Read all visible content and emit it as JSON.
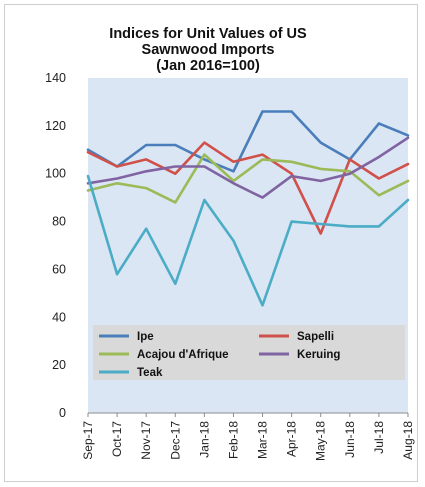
{
  "chart_data": {
    "type": "line",
    "title_lines": [
      "Indices for Unit Values of US",
      "Sawnwood Imports",
      "(Jan 2016=100)"
    ],
    "xlabel": "",
    "ylabel": "",
    "ylim": [
      0,
      140
    ],
    "yticks": [
      0,
      20,
      40,
      60,
      80,
      100,
      120,
      140
    ],
    "grid": false,
    "legend_position": "bottom-inside",
    "plot_background": "#dae6f3",
    "categories": [
      "Sep-17",
      "Oct-17",
      "Nov-17",
      "Dec-17",
      "Jan-18",
      "Feb-18",
      "Mar-18",
      "Apr-18",
      "May-18",
      "Jun-18",
      "Jul-18",
      "Aug-18"
    ],
    "series": [
      {
        "name": "Ipe",
        "color": "#4a7ebb",
        "values": [
          110,
          103,
          112,
          112,
          106,
          101,
          126,
          126,
          113,
          106,
          121,
          116
        ]
      },
      {
        "name": "Sapelli",
        "color": "#d0504a",
        "values": [
          109,
          103,
          106,
          100,
          113,
          105,
          108,
          100,
          75,
          106,
          98,
          104
        ]
      },
      {
        "name": "Acajou d'Afrique",
        "color": "#9bbb59",
        "values": [
          93,
          96,
          94,
          88,
          108,
          97,
          106,
          105,
          102,
          101,
          91,
          97
        ]
      },
      {
        "name": "Keruing",
        "color": "#8064a2",
        "values": [
          96,
          98,
          101,
          103,
          103,
          96,
          90,
          99,
          97,
          100,
          107,
          115
        ]
      },
      {
        "name": "Teak",
        "color": "#4bacc6",
        "values": [
          99,
          58,
          77,
          54,
          89,
          72,
          45,
          80,
          79,
          78,
          78,
          89
        ]
      }
    ]
  }
}
